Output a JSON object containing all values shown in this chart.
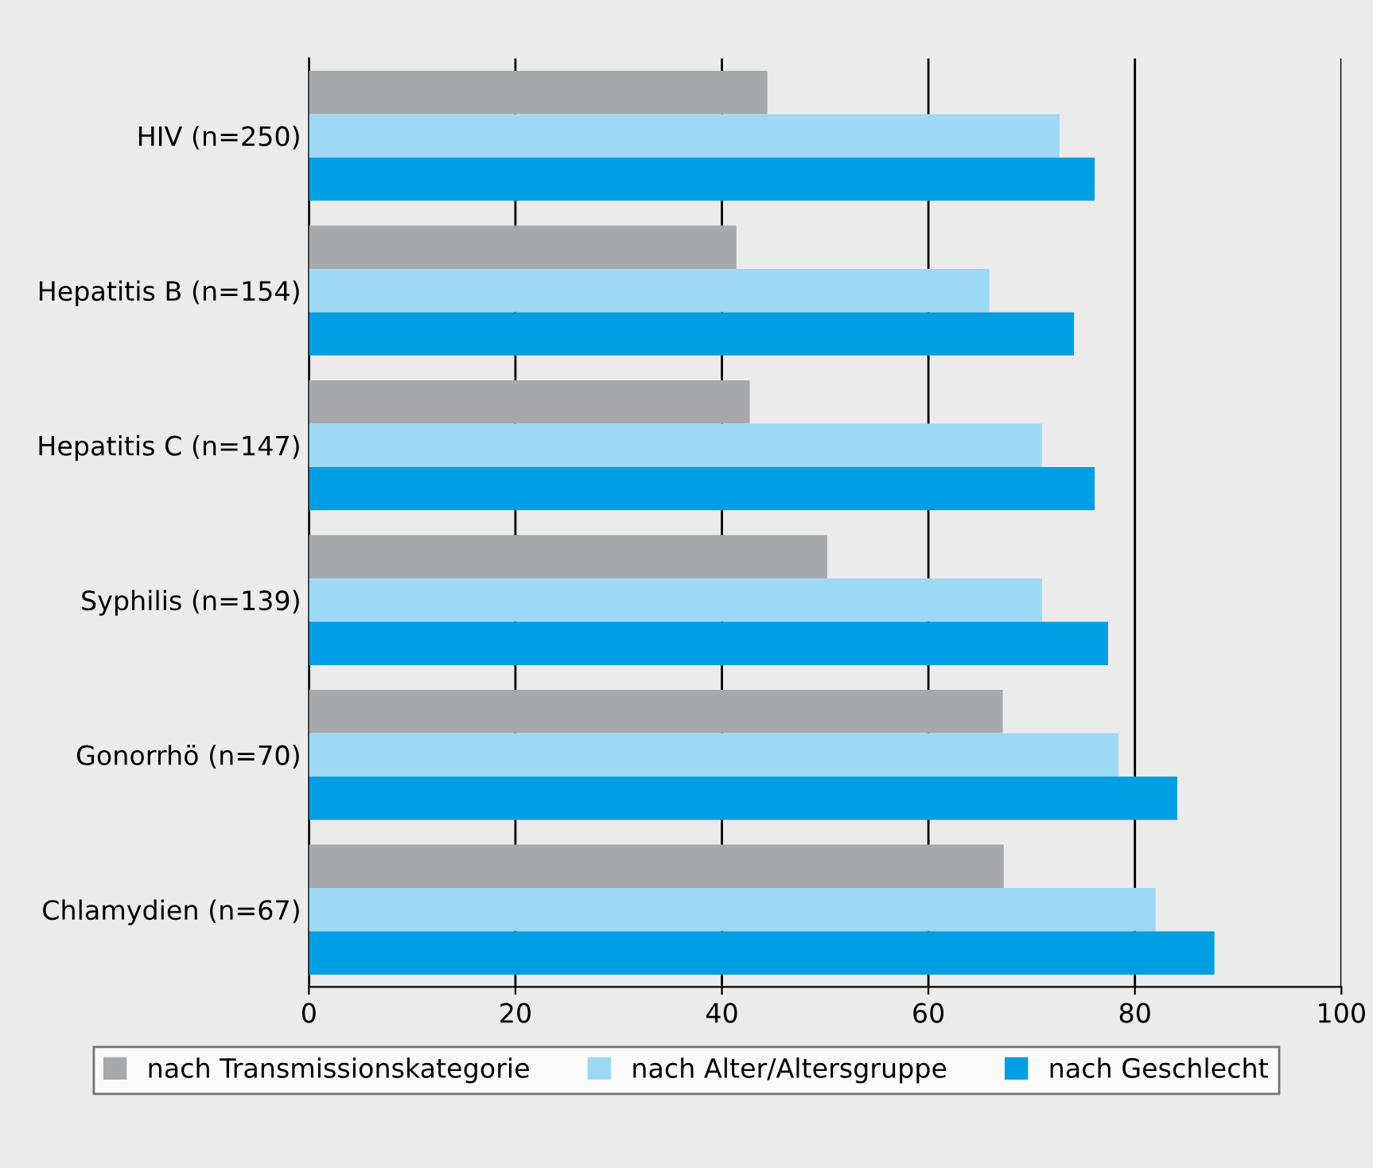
{
  "chart_data": {
    "type": "bar",
    "orientation": "horizontal",
    "categories": [
      "HIV (n=250)",
      "Hepatitis B (n=154)",
      "Hepatitis C (n=147)",
      "Syphilis (n=139)",
      "Gonorrhö (n=70)",
      "Chlamydien (n=67)"
    ],
    "series": [
      {
        "name": "nach Transmissionskategorie",
        "color": "#a8a9ab",
        "values": [
          44.4,
          41.4,
          42.7,
          50.2,
          67.2,
          67.3
        ]
      },
      {
        "name": "nach Alter/Altersgruppe",
        "color": "#9dd9f7",
        "values": [
          72.7,
          65.9,
          71.0,
          71.0,
          78.4,
          82.0
        ]
      },
      {
        "name": "nach Geschlecht",
        "color": "#009fe3",
        "values": [
          76.1,
          74.1,
          76.1,
          77.4,
          84.1,
          87.7
        ]
      }
    ],
    "xlim": [
      0,
      100
    ],
    "xticks": [
      0,
      20,
      40,
      60,
      80,
      100
    ],
    "grid": "x",
    "legend": "bottom"
  }
}
